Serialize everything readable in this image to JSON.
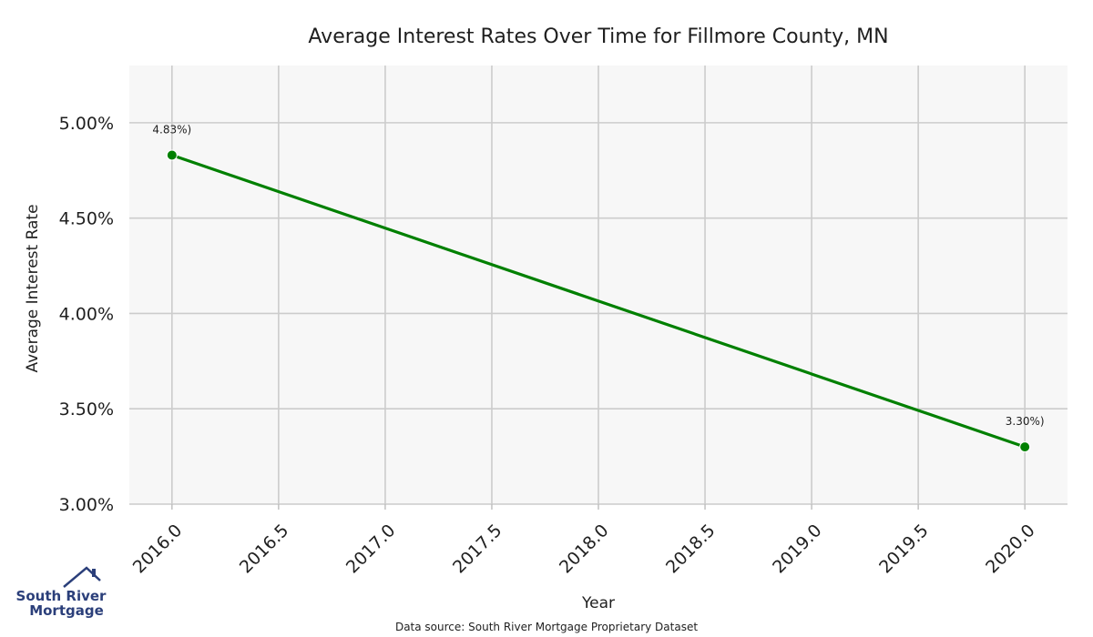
{
  "chart_data": {
    "type": "line",
    "title": "Average Interest Rates Over Time for Fillmore County, MN",
    "xlabel": "Year",
    "ylabel": "Average Interest Rate",
    "x": [
      2016.0,
      2020.0
    ],
    "series": [
      {
        "values": [
          4.83,
          3.3
        ],
        "point_labels": [
          "4.83%)",
          "3.30%)"
        ]
      }
    ],
    "xlim": [
      2015.8,
      2020.2
    ],
    "ylim": [
      3.0,
      5.3
    ],
    "xticks": [
      2016.0,
      2016.5,
      2017.0,
      2017.5,
      2018.0,
      2018.5,
      2019.0,
      2019.5,
      2020.0
    ],
    "xtick_labels": [
      "2016.0",
      "2016.5",
      "2017.0",
      "2017.5",
      "2018.0",
      "2018.5",
      "2019.0",
      "2019.5",
      "2020.0"
    ],
    "yticks": [
      3.0,
      3.5,
      4.0,
      4.5,
      5.0
    ],
    "ytick_labels": [
      "3.00%",
      "3.50%",
      "4.00%",
      "4.50%",
      "5.00%"
    ],
    "grid": true,
    "legend": "none",
    "colors": {
      "line": "#008000",
      "plot_background": "#f7f7f7",
      "grid": "#cccccc"
    }
  },
  "footer": {
    "source": "Data source: South River Mortgage Proprietary Dataset"
  },
  "logo": {
    "line1": "South River",
    "line2": "Mortgage",
    "icon": "house-roof-icon",
    "color": "#2b3f7a"
  }
}
